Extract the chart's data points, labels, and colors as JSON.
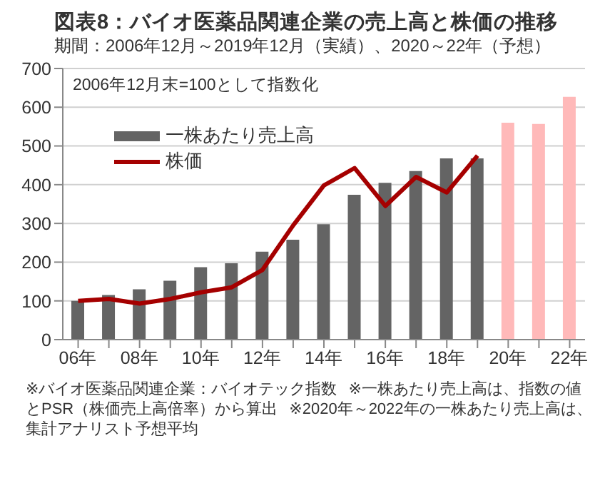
{
  "chart_data": {
    "type": "bar",
    "title": "図表8：バイオ医薬品関連企業の売上高と株価の推移",
    "subtitle": "期間：2006年12月～2019年12月（実績）、2020～22年（予想）",
    "categories": [
      "06年",
      null,
      "08年",
      null,
      "10年",
      null,
      "12年",
      null,
      "14年",
      null,
      "16年",
      null,
      "18年",
      null,
      "20年",
      null,
      "22年"
    ],
    "series": [
      {
        "name": "一株あたり売上高",
        "color": "#646464",
        "colors": [
          "#646464",
          "#646464",
          "#646464",
          "#646464",
          "#646464",
          "#646464",
          "#646464",
          "#646464",
          "#646464",
          "#646464",
          "#646464",
          "#646464",
          "#646464",
          "#646464",
          "#ffb9b9",
          "#ffb9b9",
          "#ffb9b9"
        ],
        "values": [
          100,
          115,
          130,
          152,
          187,
          197,
          227,
          258,
          298,
          374,
          405,
          435,
          468,
          468,
          560,
          557,
          627
        ]
      },
      {
        "name": "株価",
        "type": "line",
        "color": "#a50000",
        "values": [
          100,
          105,
          93,
          105,
          122,
          135,
          180,
          295,
          398,
          443,
          345,
          420,
          380,
          475,
          null,
          null,
          null
        ]
      }
    ],
    "ylim": [
      0,
      700
    ],
    "yticks": [
      0,
      100,
      200,
      300,
      400,
      500,
      600,
      700
    ],
    "grid": "y",
    "legend": "top left",
    "marker": "none",
    "line_style": "solid",
    "annotations": [
      "2006年12月末=100として指数化",
      "※バイオ医薬品関連企業：バイオテック指数",
      "※一株あたり売上高は、指数の値とPSR（株価売上高倍率）から算出",
      "※2020年～2022年の一株あたり売上高は、集計アナリスト予想平均"
    ]
  }
}
